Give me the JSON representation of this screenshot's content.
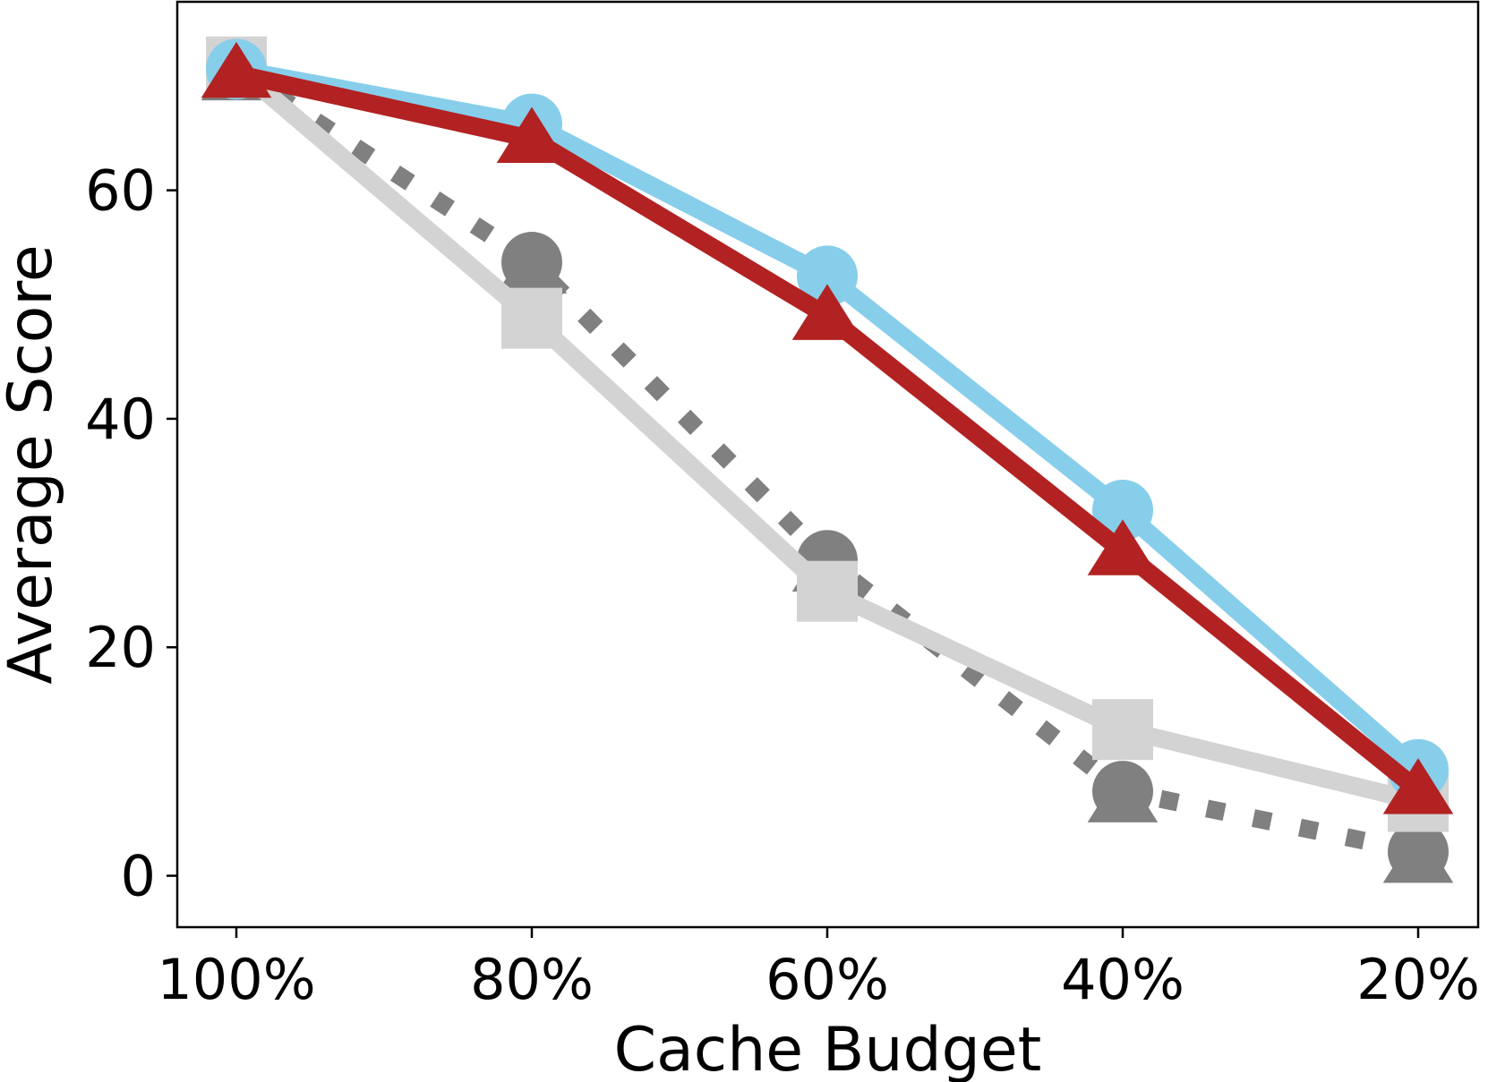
{
  "chart_data": {
    "type": "line",
    "title": "",
    "xlabel": "Cache Budget",
    "ylabel": "Average Score",
    "categories": [
      "100%",
      "80%",
      "60%",
      "40%",
      "20%"
    ],
    "yticks": [
      0,
      20,
      40,
      60
    ],
    "ylim": [
      -4.5,
      76.5
    ],
    "grid": false,
    "legend": "none",
    "series": [
      {
        "values": [
          70.6,
          53.7,
          27.6,
          7.4,
          2.1
        ],
        "color": "#808080",
        "line_style": "dotted",
        "marker": "circle",
        "marker_extra": "triangle-under"
      },
      {
        "values": [
          70.8,
          48.8,
          24.9,
          12.8,
          6.5
        ],
        "color": "#d3d3d3",
        "line_style": "solid",
        "marker": "square"
      },
      {
        "values": [
          70.6,
          65.8,
          52.5,
          32.0,
          9.3
        ],
        "color": "#87ceeb",
        "line_style": "solid",
        "marker": "circle"
      },
      {
        "values": [
          70.2,
          64.5,
          49.0,
          28.4,
          7.5
        ],
        "color": "#b22222",
        "line_style": "solid",
        "marker": "triangle"
      }
    ]
  }
}
